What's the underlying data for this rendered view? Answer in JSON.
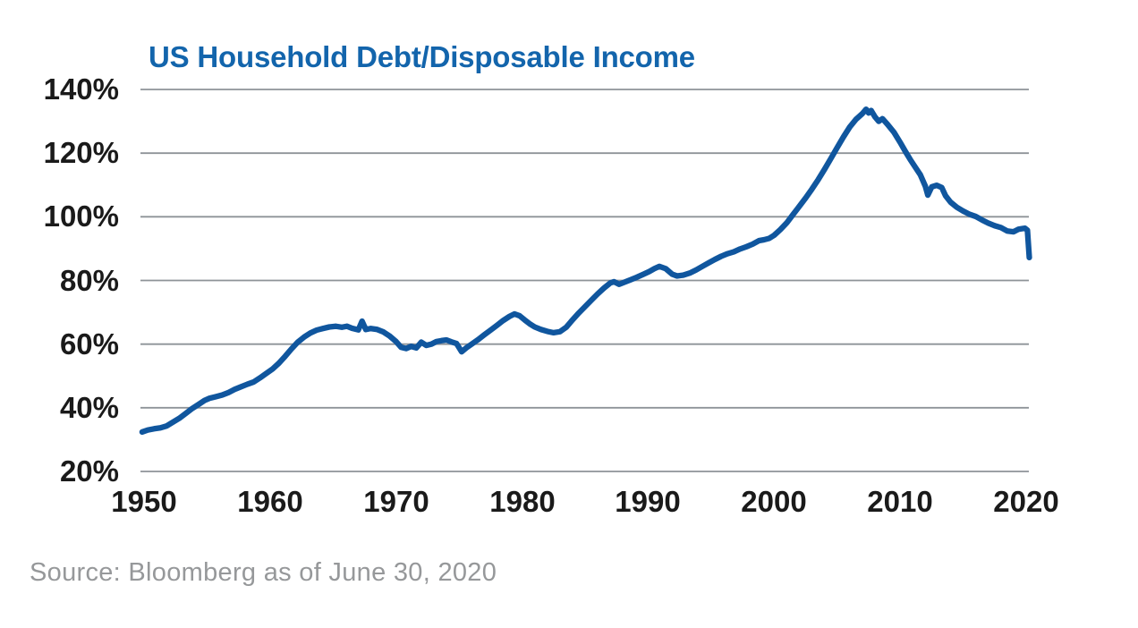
{
  "header": {
    "title": "US Household Debt/Disposable Income"
  },
  "footer": {
    "source": "Source: Bloomberg as of June 30, 2020"
  },
  "colors": {
    "title_blue": "#1365AC",
    "line_blue": "#10569E",
    "gridline_gray": "#8E9398",
    "axis_text": "#1A1A1A",
    "source_gray": "#96989A"
  },
  "chart_data": {
    "type": "line",
    "title": "US Household Debt/Disposable Income",
    "xlabel": "",
    "ylabel": "",
    "legend": "none",
    "grid": "horizontal-only",
    "x_axis": {
      "min": 1950,
      "max": 2020,
      "tick_values": [
        1950,
        1960,
        1970,
        1980,
        1990,
        2000,
        2010,
        2020
      ],
      "tick_labels": [
        "1950",
        "1960",
        "1970",
        "1980",
        "1990",
        "2000",
        "2010",
        "2020"
      ]
    },
    "y_axis": {
      "min": 20,
      "max": 140,
      "unit": "%",
      "tick_values": [
        140,
        120,
        100,
        80,
        60,
        40,
        20
      ],
      "tick_labels": [
        "140%",
        "120%",
        "100%",
        "80%",
        "60%",
        "40%",
        "20%"
      ]
    },
    "series_name": "US Household Debt / Disposable Income (%)",
    "points": [
      [
        1949.85,
        32.4
      ],
      [
        1950.3,
        33.0
      ],
      [
        1950.8,
        33.4
      ],
      [
        1951.3,
        33.7
      ],
      [
        1951.8,
        34.3
      ],
      [
        1952.3,
        35.5
      ],
      [
        1952.8,
        36.7
      ],
      [
        1953.3,
        38.2
      ],
      [
        1953.8,
        39.7
      ],
      [
        1954.3,
        41.0
      ],
      [
        1954.8,
        42.3
      ],
      [
        1955.2,
        43.0
      ],
      [
        1955.7,
        43.5
      ],
      [
        1956.2,
        44.0
      ],
      [
        1956.7,
        44.8
      ],
      [
        1957.2,
        45.8
      ],
      [
        1957.7,
        46.6
      ],
      [
        1958.2,
        47.4
      ],
      [
        1958.7,
        48.1
      ],
      [
        1959.2,
        49.4
      ],
      [
        1959.7,
        50.8
      ],
      [
        1960.2,
        52.2
      ],
      [
        1960.7,
        54.0
      ],
      [
        1961.2,
        56.2
      ],
      [
        1961.7,
        58.5
      ],
      [
        1962.2,
        60.6
      ],
      [
        1962.7,
        62.2
      ],
      [
        1963.2,
        63.5
      ],
      [
        1963.7,
        64.4
      ],
      [
        1964.2,
        64.9
      ],
      [
        1964.7,
        65.4
      ],
      [
        1965.2,
        65.6
      ],
      [
        1965.7,
        65.3
      ],
      [
        1966.1,
        65.6
      ],
      [
        1966.5,
        65.0
      ],
      [
        1967.0,
        64.5
      ],
      [
        1967.3,
        67.2
      ],
      [
        1967.6,
        64.6
      ],
      [
        1968.0,
        64.9
      ],
      [
        1968.5,
        64.6
      ],
      [
        1969.0,
        63.8
      ],
      [
        1969.5,
        62.5
      ],
      [
        1970.0,
        60.8
      ],
      [
        1970.4,
        59.0
      ],
      [
        1970.8,
        58.6
      ],
      [
        1971.2,
        59.3
      ],
      [
        1971.6,
        58.8
      ],
      [
        1972.0,
        60.6
      ],
      [
        1972.4,
        59.6
      ],
      [
        1972.8,
        60.0
      ],
      [
        1973.2,
        60.8
      ],
      [
        1973.6,
        61.1
      ],
      [
        1974.0,
        61.3
      ],
      [
        1974.4,
        60.7
      ],
      [
        1974.8,
        60.2
      ],
      [
        1975.2,
        57.6
      ],
      [
        1975.6,
        58.9
      ],
      [
        1976.0,
        60.0
      ],
      [
        1976.5,
        61.4
      ],
      [
        1977.0,
        62.9
      ],
      [
        1977.5,
        64.4
      ],
      [
        1978.0,
        65.9
      ],
      [
        1978.5,
        67.4
      ],
      [
        1979.0,
        68.7
      ],
      [
        1979.4,
        69.5
      ],
      [
        1979.8,
        68.9
      ],
      [
        1980.2,
        67.6
      ],
      [
        1980.6,
        66.4
      ],
      [
        1981.0,
        65.4
      ],
      [
        1981.5,
        64.6
      ],
      [
        1982.0,
        64.0
      ],
      [
        1982.5,
        63.6
      ],
      [
        1983.0,
        63.9
      ],
      [
        1983.5,
        65.3
      ],
      [
        1984.0,
        67.6
      ],
      [
        1984.5,
        69.8
      ],
      [
        1985.0,
        71.8
      ],
      [
        1985.5,
        73.8
      ],
      [
        1986.0,
        75.8
      ],
      [
        1986.5,
        77.6
      ],
      [
        1987.0,
        79.2
      ],
      [
        1987.3,
        79.6
      ],
      [
        1987.7,
        78.8
      ],
      [
        1988.1,
        79.4
      ],
      [
        1988.6,
        80.2
      ],
      [
        1989.1,
        81.0
      ],
      [
        1989.6,
        81.9
      ],
      [
        1990.1,
        82.8
      ],
      [
        1990.5,
        83.7
      ],
      [
        1990.9,
        84.4
      ],
      [
        1991.4,
        83.7
      ],
      [
        1991.9,
        82.0
      ],
      [
        1992.3,
        81.4
      ],
      [
        1992.8,
        81.7
      ],
      [
        1993.3,
        82.3
      ],
      [
        1993.8,
        83.3
      ],
      [
        1994.3,
        84.4
      ],
      [
        1994.8,
        85.5
      ],
      [
        1995.3,
        86.6
      ],
      [
        1995.8,
        87.6
      ],
      [
        1996.3,
        88.4
      ],
      [
        1996.8,
        89.0
      ],
      [
        1997.3,
        89.9
      ],
      [
        1997.8,
        90.6
      ],
      [
        1998.3,
        91.4
      ],
      [
        1998.8,
        92.5
      ],
      [
        1999.2,
        92.8
      ],
      [
        1999.6,
        93.2
      ],
      [
        2000.0,
        94.2
      ],
      [
        2000.5,
        96.0
      ],
      [
        2001.0,
        98.1
      ],
      [
        2001.5,
        100.7
      ],
      [
        2002.0,
        103.3
      ],
      [
        2002.5,
        105.9
      ],
      [
        2003.0,
        108.7
      ],
      [
        2003.5,
        111.7
      ],
      [
        2004.0,
        114.9
      ],
      [
        2004.5,
        118.3
      ],
      [
        2005.0,
        121.7
      ],
      [
        2005.5,
        125.1
      ],
      [
        2006.0,
        128.2
      ],
      [
        2006.5,
        130.6
      ],
      [
        2007.0,
        132.4
      ],
      [
        2007.3,
        133.8
      ],
      [
        2007.5,
        132.6
      ],
      [
        2007.7,
        133.4
      ],
      [
        2008.0,
        131.4
      ],
      [
        2008.3,
        130.0
      ],
      [
        2008.6,
        130.8
      ],
      [
        2009.0,
        129.0
      ],
      [
        2009.5,
        126.6
      ],
      [
        2010.0,
        123.4
      ],
      [
        2010.4,
        120.6
      ],
      [
        2010.8,
        118.0
      ],
      [
        2011.2,
        115.6
      ],
      [
        2011.6,
        113.2
      ],
      [
        2012.0,
        109.6
      ],
      [
        2012.2,
        106.8
      ],
      [
        2012.5,
        109.4
      ],
      [
        2012.9,
        109.9
      ],
      [
        2013.3,
        109.2
      ],
      [
        2013.6,
        106.6
      ],
      [
        2014.0,
        104.6
      ],
      [
        2014.5,
        103.0
      ],
      [
        2015.0,
        101.8
      ],
      [
        2015.5,
        100.8
      ],
      [
        2016.0,
        100.1
      ],
      [
        2016.5,
        99.0
      ],
      [
        2017.0,
        98.0
      ],
      [
        2017.5,
        97.2
      ],
      [
        2018.0,
        96.6
      ],
      [
        2018.5,
        95.5
      ],
      [
        2019.0,
        95.3
      ],
      [
        2019.4,
        96.1
      ],
      [
        2019.9,
        96.4
      ],
      [
        2020.1,
        95.8
      ],
      [
        2020.25,
        87.2
      ]
    ]
  }
}
